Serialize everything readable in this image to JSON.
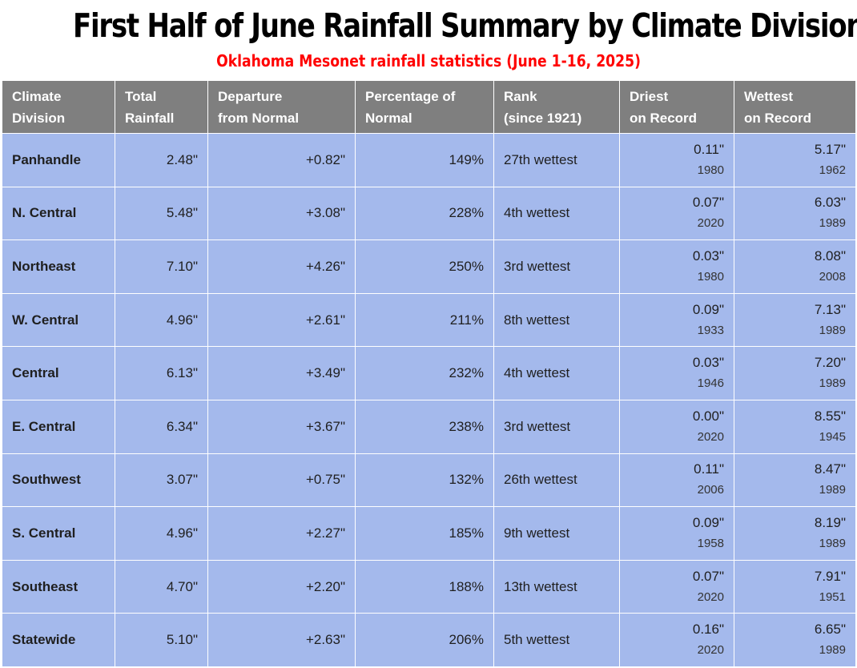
{
  "title": "First Half of June Rainfall Summary by Climate Division",
  "subtitle": "Oklahoma Mesonet rainfall statistics (June 1-16, 2025)",
  "colors": {
    "header_bg": "#7f7f7f",
    "row_bg": "#a4b9ec",
    "subtitle": "#ff0000"
  },
  "columns": {
    "division": [
      "Climate",
      "Division"
    ],
    "total": [
      "Total",
      "Rainfall"
    ],
    "departure": [
      "Departure",
      "from Normal"
    ],
    "percent": [
      "Percentage of",
      "Normal"
    ],
    "rank": [
      "Rank",
      "(since 1921)"
    ],
    "driest": [
      "Driest",
      "on Record"
    ],
    "wettest": [
      "Wettest",
      "on Record"
    ]
  },
  "rows": [
    {
      "division": "Panhandle",
      "total": "2.48\"",
      "departure": "+0.82\"",
      "percent": "149%",
      "rank": "27th wettest",
      "driest_value": "0.11\"",
      "driest_year": "1980",
      "wettest_value": "5.17\"",
      "wettest_year": "1962"
    },
    {
      "division": "N. Central",
      "total": "5.48\"",
      "departure": "+3.08\"",
      "percent": "228%",
      "rank": "4th wettest",
      "driest_value": "0.07\"",
      "driest_year": "2020",
      "wettest_value": "6.03\"",
      "wettest_year": "1989"
    },
    {
      "division": "Northeast",
      "total": "7.10\"",
      "departure": "+4.26\"",
      "percent": "250%",
      "rank": "3rd wettest",
      "driest_value": "0.03\"",
      "driest_year": "1980",
      "wettest_value": "8.08\"",
      "wettest_year": "2008"
    },
    {
      "division": "W. Central",
      "total": "4.96\"",
      "departure": "+2.61\"",
      "percent": "211%",
      "rank": "8th wettest",
      "driest_value": "0.09\"",
      "driest_year": "1933",
      "wettest_value": "7.13\"",
      "wettest_year": "1989"
    },
    {
      "division": "Central",
      "total": "6.13\"",
      "departure": "+3.49\"",
      "percent": "232%",
      "rank": "4th wettest",
      "driest_value": "0.03\"",
      "driest_year": "1946",
      "wettest_value": "7.20\"",
      "wettest_year": "1989"
    },
    {
      "division": "E. Central",
      "total": "6.34\"",
      "departure": "+3.67\"",
      "percent": "238%",
      "rank": "3rd wettest",
      "driest_value": "0.00\"",
      "driest_year": "2020",
      "wettest_value": "8.55\"",
      "wettest_year": "1945"
    },
    {
      "division": "Southwest",
      "total": "3.07\"",
      "departure": "+0.75\"",
      "percent": "132%",
      "rank": "26th wettest",
      "driest_value": "0.11\"",
      "driest_year": "2006",
      "wettest_value": "8.47\"",
      "wettest_year": "1989"
    },
    {
      "division": "S. Central",
      "total": "4.96\"",
      "departure": "+2.27\"",
      "percent": "185%",
      "rank": "9th wettest",
      "driest_value": "0.09\"",
      "driest_year": "1958",
      "wettest_value": "8.19\"",
      "wettest_year": "1989"
    },
    {
      "division": "Southeast",
      "total": "4.70\"",
      "departure": "+2.20\"",
      "percent": "188%",
      "rank": "13th wettest",
      "driest_value": "0.07\"",
      "driest_year": "2020",
      "wettest_value": "7.91\"",
      "wettest_year": "1951"
    },
    {
      "division": "Statewide",
      "total": "5.10\"",
      "departure": "+2.63\"",
      "percent": "206%",
      "rank": "5th wettest",
      "driest_value": "0.16\"",
      "driest_year": "2020",
      "wettest_value": "6.65\"",
      "wettest_year": "1989"
    }
  ]
}
